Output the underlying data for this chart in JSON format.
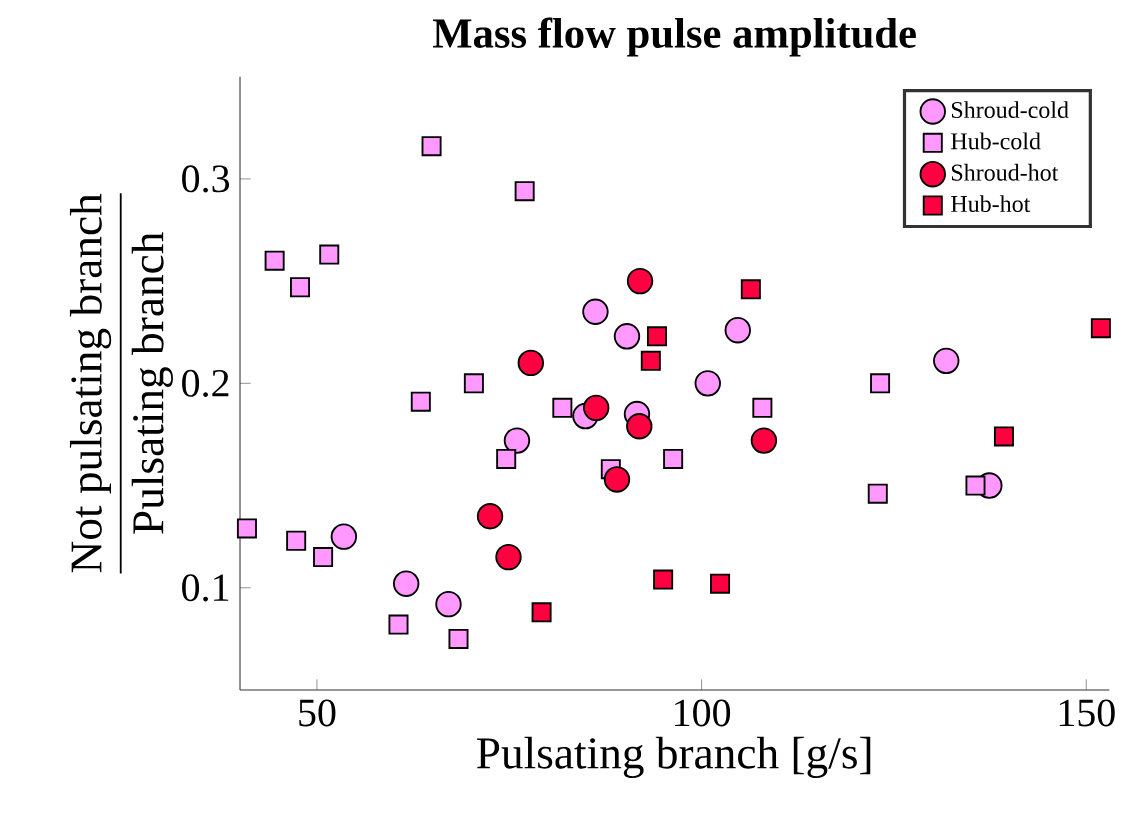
{
  "chart_data": {
    "type": "scatter",
    "title": "Mass flow pulse amplitude",
    "xlabel": "Pulsating branch [g/s]",
    "ylabel": "\\dfrac{\\text{Not pulsating branch}}{\\text{Pulsating branch}}",
    "xlim": [
      40,
      153
    ],
    "ylim": [
      0.05,
      0.35
    ],
    "xticks": [
      50,
      100,
      150
    ],
    "yticks": [
      0.1,
      0.2,
      0.3
    ],
    "grid": false,
    "legend": "top right",
    "series": [
      {
        "name": "Shroud-cold",
        "color": "#ff99ff",
        "marker": "circle",
        "x": [
          86.2,
          90.3,
          84.9,
          91.6,
          76.0,
          53.5,
          61.6,
          67.1,
          104.7,
          100.8,
          131.8,
          137.4
        ],
        "values": [
          0.235,
          0.223,
          0.184,
          0.185,
          0.172,
          0.125,
          0.102,
          0.092,
          0.226,
          0.2,
          0.211,
          0.15
        ]
      },
      {
        "name": "Hub-cold",
        "color": "#ff99ff",
        "marker": "square",
        "x": [
          64.9,
          77.0,
          44.5,
          51.6,
          47.8,
          70.4,
          63.5,
          81.9,
          74.6,
          40.9,
          47.3,
          50.8,
          60.6,
          68.4,
          88.2,
          96.3,
          107.9,
          123.2,
          122.9,
          135.6
        ],
        "values": [
          0.316,
          0.294,
          0.26,
          0.263,
          0.247,
          0.2,
          0.191,
          0.188,
          0.163,
          0.129,
          0.123,
          0.115,
          0.082,
          0.075,
          0.158,
          0.163,
          0.188,
          0.2,
          0.146,
          0.15
        ]
      },
      {
        "name": "Shroud-hot",
        "color": "#ff0040",
        "marker": "circle",
        "x": [
          92.0,
          77.8,
          86.3,
          91.9,
          89.0,
          72.5,
          74.9,
          108.1
        ],
        "values": [
          0.25,
          0.21,
          0.188,
          0.179,
          0.153,
          0.135,
          0.115,
          0.172
        ]
      },
      {
        "name": "Hub-hot",
        "color": "#ff0040",
        "marker": "square",
        "x": [
          94.2,
          93.4,
          79.2,
          95.0,
          106.4,
          151.9,
          139.3,
          102.4
        ],
        "values": [
          0.223,
          0.211,
          0.088,
          0.104,
          0.246,
          0.227,
          0.174,
          0.102
        ]
      }
    ]
  }
}
